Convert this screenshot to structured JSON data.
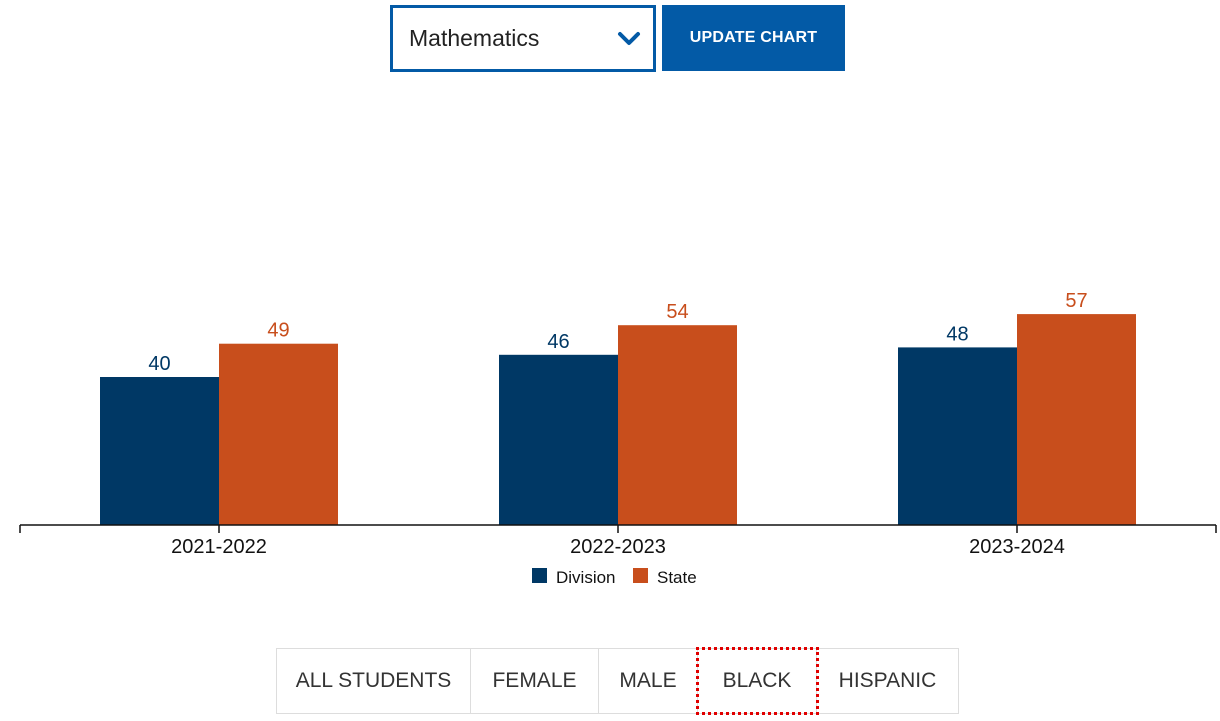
{
  "subject_select": {
    "value": "Mathematics",
    "icon": "chevron-down-icon"
  },
  "update_button": {
    "label": "UPDATE CHART"
  },
  "chart_data": {
    "type": "bar",
    "categories": [
      "2021-2022",
      "2022-2023",
      "2023-2024"
    ],
    "series": [
      {
        "name": "Division",
        "values": [
          40,
          46,
          48
        ],
        "color": "#003865"
      },
      {
        "name": "State",
        "values": [
          49,
          54,
          57
        ],
        "color": "#c84e1c"
      }
    ],
    "ylim": [
      0,
      100
    ],
    "grid": false,
    "legend": "bottom-center"
  },
  "tabs": [
    {
      "label": "ALL STUDENTS",
      "name": "tab-all-students",
      "focused": false
    },
    {
      "label": "FEMALE",
      "name": "tab-female",
      "focused": false
    },
    {
      "label": "MALE",
      "name": "tab-male",
      "focused": false
    },
    {
      "label": "BLACK",
      "name": "tab-black",
      "focused": true
    },
    {
      "label": "HISPANIC",
      "name": "tab-hispanic",
      "focused": false
    }
  ]
}
